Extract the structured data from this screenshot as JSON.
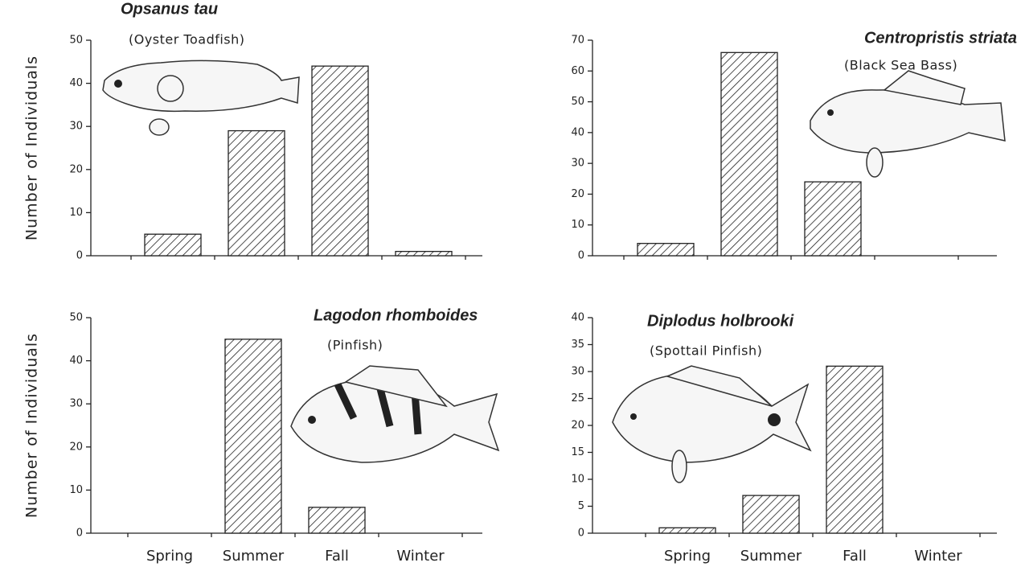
{
  "chart_data": [
    {
      "type": "bar",
      "title": "Opsanus tau",
      "subtitle": "(Oyster Toadfish)",
      "y_label": "Number of Individuals",
      "categories": [
        null,
        null,
        null,
        null
      ],
      "values": [
        5,
        29,
        44,
        1
      ],
      "color": "#222222",
      "ylim": [
        0,
        50
      ],
      "yticks": [
        0,
        10,
        20,
        30,
        40,
        50
      ]
    },
    {
      "type": "bar",
      "title": "Centropristis striata",
      "subtitle": "(Black Sea Bass)",
      "categories": [
        null,
        null,
        null,
        null
      ],
      "values": [
        4,
        66,
        24,
        0
      ],
      "color": "#222222",
      "ylim": [
        0,
        70
      ],
      "yticks": [
        0,
        10,
        20,
        30,
        40,
        50,
        60,
        70
      ]
    },
    {
      "type": "bar",
      "title": "Lagodon rhomboides",
      "subtitle": "(Pinfish)",
      "y_label": "Number of Individuals",
      "categories": [
        "Spring",
        "Summer",
        "Fall",
        "Winter"
      ],
      "values": [
        0,
        45,
        6,
        0
      ],
      "color": "#222222",
      "ylim": [
        0,
        50
      ],
      "yticks": [
        0,
        10,
        20,
        30,
        40,
        50
      ]
    },
    {
      "type": "bar",
      "title": "Diplodus holbrooki",
      "subtitle": "(Spottail Pinfish)",
      "categories": [
        "Spring",
        "Summer",
        "Fall",
        "Winter"
      ],
      "values": [
        1,
        7,
        31,
        0
      ],
      "color": "#222222",
      "ylim": [
        0,
        40
      ],
      "yticks": [
        0,
        5,
        10,
        15,
        20,
        25,
        30,
        35,
        40
      ]
    }
  ]
}
